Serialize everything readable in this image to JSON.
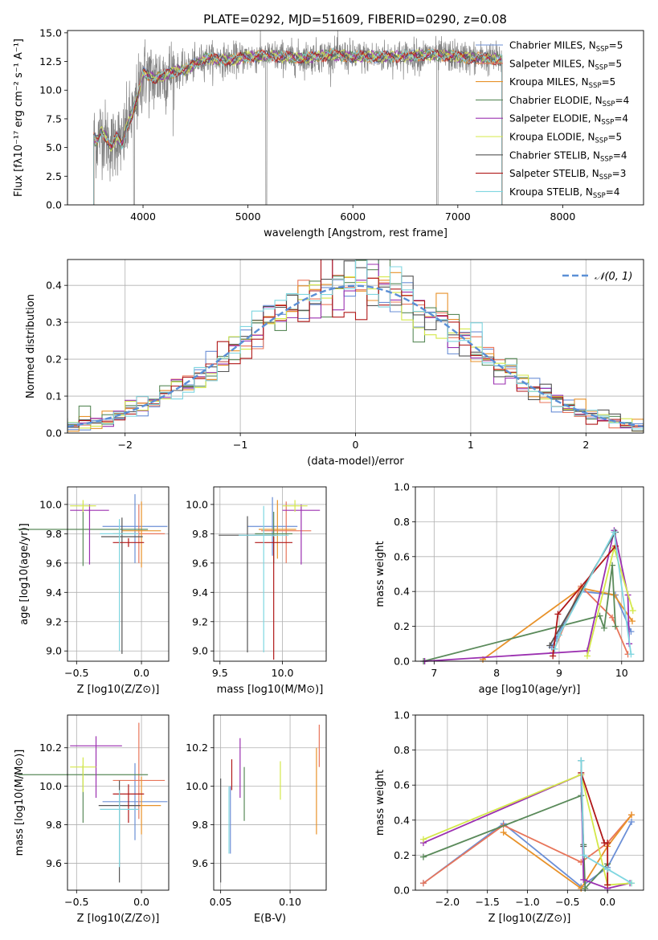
{
  "figure_title": "PLATE=0292, MJD=51609, FIBERID=0290, z=0.08",
  "models": [
    {
      "name": "Chabrier MILES",
      "nssp": "5",
      "color": "#6b8fd6"
    },
    {
      "name": "Salpeter MILES",
      "nssp": "5",
      "color": "#e8755a"
    },
    {
      "name": "Kroupa MILES",
      "nssp": "5",
      "color": "#e8922a"
    },
    {
      "name": "Chabrier ELODIE",
      "nssp": "4",
      "color": "#5a8a5a"
    },
    {
      "name": "Salpeter ELODIE",
      "nssp": "4",
      "color": "#9b30b0"
    },
    {
      "name": "Kroupa ELODIE",
      "nssp": "5",
      "color": "#d4e84a"
    },
    {
      "name": "Chabrier STELIB",
      "nssp": "4",
      "color": "#555555"
    },
    {
      "name": "Salpeter STELIB",
      "nssp": "3",
      "color": "#b01818"
    },
    {
      "name": "Kroupa STELIB",
      "nssp": "4",
      "color": "#7fd6e0"
    }
  ],
  "chart_data": [
    {
      "type": "line",
      "title": "PLATE=0292, MJD=51609, FIBERID=0290, z=0.08",
      "xlabel": "wavelength [Angstrom, rest frame]",
      "ylabel": "Flux [fλ10⁻¹⁷ erg cm⁻² s⁻¹ A⁻¹]",
      "xlim": [
        3280,
        8770
      ],
      "ylim": [
        0,
        15.2
      ],
      "xticks": [
        "4000",
        "5000",
        "6000",
        "7000",
        "8000"
      ],
      "yticks": [
        "0.0",
        "2.5",
        "5.0",
        "7.5",
        "10.0",
        "12.5",
        "15.0"
      ],
      "data_series": {
        "name": "data",
        "color": "#808080"
      },
      "spectrum_knots": {
        "x": [
          3520,
          3560,
          3600,
          3650,
          3700,
          3750,
          3800,
          3850,
          3900,
          3950,
          4000,
          4100,
          4200,
          4300,
          4400,
          4500,
          4600,
          4800,
          5000,
          5200,
          5500,
          5800,
          6000,
          6300,
          6600,
          6800,
          7000,
          7200,
          7420
        ],
        "y": [
          6.0,
          5.5,
          6.5,
          5.8,
          5.0,
          6.0,
          5.2,
          7.0,
          8.0,
          9.5,
          11.5,
          11.0,
          11.3,
          11.6,
          11.8,
          12.3,
          12.8,
          12.6,
          12.9,
          13.0,
          12.8,
          13.1,
          12.9,
          12.9,
          13.0,
          13.1,
          12.9,
          12.8,
          12.7
        ]
      },
      "legend_position": "upper right"
    },
    {
      "type": "histogram",
      "xlabel": "(data-model)/error",
      "ylabel": "Normed distribution",
      "xlim": [
        -2.5,
        2.5
      ],
      "ylim": [
        0,
        0.47
      ],
      "grid": true,
      "xticks": [
        "−2",
        "−1",
        "0",
        "1",
        "2"
      ],
      "yticks": [
        "0.0",
        "0.1",
        "0.2",
        "0.3",
        "0.4"
      ],
      "reference_curve": {
        "label": "𝒩(0, 1)",
        "mean": 0,
        "sigma": 1,
        "color": "#5b8fd6"
      },
      "bin_width": 0.1,
      "legend_position": "upper right"
    },
    {
      "type": "scatter",
      "panel": "age-vs-Z",
      "xlabel": "Z [log10(Z/Z⊙)]",
      "ylabel": "age  [log10(age/yr)]",
      "xlim": [
        -0.57,
        0.21
      ],
      "ylim": [
        8.93,
        10.12
      ],
      "xticks": [
        "−0.5",
        "0.0"
      ],
      "yticks": [
        "9.0",
        "9.2",
        "9.4",
        "9.6",
        "9.8",
        "10.0"
      ],
      "points": [
        {
          "x": -0.05,
          "y": 9.85,
          "xerr": 0.25,
          "yerr_lo": 0.25,
          "yerr_hi": 0.22
        },
        {
          "x": -0.02,
          "y": 9.8,
          "xerr": 0.2,
          "yerr_lo": 0.2,
          "yerr_hi": 0.2
        },
        {
          "x": 0.0,
          "y": 9.82,
          "xerr": 0.15,
          "yerr_lo": 0.25,
          "yerr_hi": 0.2
        },
        {
          "x": -0.45,
          "y": 9.83,
          "xerr": 0.5,
          "yerr_lo": 0.25,
          "yerr_hi": 0.15
        },
        {
          "x": -0.4,
          "y": 9.96,
          "xerr": 0.15,
          "yerr_lo": 0.37,
          "yerr_hi": 0.04
        },
        {
          "x": -0.45,
          "y": 9.99,
          "xerr": 0.1,
          "yerr_lo": 0.04,
          "yerr_hi": 0.04
        },
        {
          "x": -0.15,
          "y": 9.78,
          "xerr": 0.16,
          "yerr_lo": 0.8,
          "yerr_hi": 0.13
        },
        {
          "x": -0.1,
          "y": 9.74,
          "xerr": 0.12,
          "yerr_lo": 0.03,
          "yerr_hi": 0.03
        },
        {
          "x": -0.17,
          "y": 9.8,
          "xerr": 0.15,
          "yerr_lo": 0.8,
          "yerr_hi": 0.1
        }
      ]
    },
    {
      "type": "scatter",
      "panel": "age-vs-mass",
      "xlabel": "mass [log10(M/M⊙)]",
      "xlim": [
        9.45,
        10.35
      ],
      "ylim": [
        8.93,
        10.12
      ],
      "xticks": [
        "9.5",
        "10.0"
      ],
      "yticks": [
        "9.0",
        "9.2",
        "9.4",
        "9.6",
        "9.8",
        "10.0"
      ],
      "points": [
        {
          "x": 9.92,
          "y": 9.85,
          "xerr": 0.2,
          "yerr_lo": 0.2,
          "yerr_hi": 0.2
        },
        {
          "x": 10.03,
          "y": 9.82,
          "xerr": 0.2,
          "yerr_lo": 0.22,
          "yerr_hi": 0.2
        },
        {
          "x": 9.96,
          "y": 9.83,
          "xerr": 0.15,
          "yerr_lo": 0.2,
          "yerr_hi": 0.2
        },
        {
          "x": 9.93,
          "y": 9.8,
          "xerr": 0.15,
          "yerr_lo": 0.2,
          "yerr_hi": 0.15
        },
        {
          "x": 10.15,
          "y": 9.96,
          "xerr": 0.15,
          "yerr_lo": 0.37,
          "yerr_hi": 0.04
        },
        {
          "x": 10.1,
          "y": 9.99,
          "xerr": 0.1,
          "yerr_lo": 0.04,
          "yerr_hi": 0.04
        },
        {
          "x": 9.72,
          "y": 9.79,
          "xerr": 0.23,
          "yerr_lo": 0.8,
          "yerr_hi": 0.13
        },
        {
          "x": 9.93,
          "y": 9.74,
          "xerr": 0.15,
          "yerr_lo": 0.8,
          "yerr_hi": 0.04
        },
        {
          "x": 9.85,
          "y": 9.79,
          "xerr": 0.2,
          "yerr_lo": 0.8,
          "yerr_hi": 0.2
        }
      ]
    },
    {
      "type": "line",
      "panel": "mass-weight-vs-age",
      "xlabel": "age  [log10(age/yr)]",
      "ylabel": "mass weight",
      "xlim": [
        6.7,
        10.35
      ],
      "ylim": [
        0,
        1.0
      ],
      "grid": true,
      "xticks": [
        "7",
        "8",
        "9",
        "10"
      ],
      "yticks": [
        "0.0",
        "0.2",
        "0.4",
        "0.6",
        "0.8",
        "1.0"
      ],
      "series": [
        {
          "x": [
            8.88,
            8.95,
            9.35,
            9.9,
            10.15
          ],
          "y": [
            0.08,
            0.13,
            0.4,
            0.38,
            0.17
          ]
        },
        {
          "x": [
            8.9,
            9.35,
            9.85,
            10.1
          ],
          "y": [
            0.05,
            0.43,
            0.25,
            0.04
          ]
        },
        {
          "x": [
            7.78,
            9.35,
            9.88,
            10.17
          ],
          "y": [
            0.01,
            0.42,
            0.38,
            0.23
          ]
        },
        {
          "x": [
            6.83,
            9.65,
            9.72,
            9.85,
            9.9
          ],
          "y": [
            0.0,
            0.26,
            0.19,
            0.55,
            0.2
          ]
        },
        {
          "x": [
            6.85,
            9.45,
            9.88,
            10.1,
            10.12
          ],
          "y": [
            0.0,
            0.06,
            0.75,
            0.38,
            0.1
          ]
        },
        {
          "x": [
            9.45,
            9.88,
            10.18
          ],
          "y": [
            0.03,
            0.65,
            0.29
          ]
        },
        {
          "x": [
            8.85,
            9.9
          ],
          "y": [
            0.09,
            0.74
          ]
        },
        {
          "x": [
            8.9,
            8.98,
            9.9
          ],
          "y": [
            0.03,
            0.27,
            0.66
          ]
        },
        {
          "x": [
            8.93,
            9.0,
            9.88,
            10.15
          ],
          "y": [
            0.07,
            0.15,
            0.74,
            0.04
          ]
        }
      ]
    },
    {
      "type": "scatter",
      "panel": "mass-vs-Z",
      "xlabel": "Z [log10(Z/Z⊙)]",
      "ylabel": "mass [log10(M/M⊙)]",
      "xlim": [
        -0.57,
        0.21
      ],
      "ylim": [
        9.46,
        10.37
      ],
      "xticks": [
        "−0.5",
        "0.0"
      ],
      "yticks": [
        "9.6",
        "9.8",
        "10.0",
        "10.2"
      ],
      "points": [
        {
          "x": -0.05,
          "y": 9.92,
          "xerr": 0.25,
          "yerr_lo": 0.2,
          "yerr_hi": 0.2
        },
        {
          "x": -0.02,
          "y": 10.03,
          "xerr": 0.2,
          "yerr_lo": 0.2,
          "yerr_hi": 0.3
        },
        {
          "x": 0.0,
          "y": 9.9,
          "xerr": 0.15,
          "yerr_lo": 0.15,
          "yerr_hi": 0.15
        },
        {
          "x": -0.45,
          "y": 10.06,
          "xerr": 0.5,
          "yerr_lo": 0.25,
          "yerr_hi": 0.05
        },
        {
          "x": -0.35,
          "y": 10.21,
          "xerr": 0.2,
          "yerr_lo": 0.27,
          "yerr_hi": 0.05
        },
        {
          "x": -0.45,
          "y": 10.1,
          "xerr": 0.1,
          "yerr_lo": 0.13,
          "yerr_hi": 0.05
        },
        {
          "x": -0.17,
          "y": 9.9,
          "xerr": 0.16,
          "yerr_lo": 0.4,
          "yerr_hi": 0.13
        },
        {
          "x": -0.1,
          "y": 9.96,
          "xerr": 0.12,
          "yerr_lo": 0.15,
          "yerr_hi": 0.05
        },
        {
          "x": -0.17,
          "y": 9.88,
          "xerr": 0.15,
          "yerr_lo": 0.3,
          "yerr_hi": 0.1
        }
      ]
    },
    {
      "type": "scatter",
      "panel": "mass-vs-EBV",
      "xlabel": "E(B-V)",
      "xlim": [
        0.045,
        0.126
      ],
      "ylim": [
        9.46,
        10.37
      ],
      "xticks": [
        "0.05",
        "0.10"
      ],
      "yticks": [
        "9.6",
        "9.8",
        "10.0",
        "10.2"
      ],
      "points": [
        {
          "x": 0.057,
          "y": 9.8,
          "yerr_lo": 0.15,
          "yerr_hi": 0.2
        },
        {
          "x": 0.121,
          "y": 10.2,
          "yerr_lo": 0.1,
          "yerr_hi": 0.12
        },
        {
          "x": 0.119,
          "y": 9.97,
          "yerr_lo": 0.22,
          "yerr_hi": 0.23
        },
        {
          "x": 0.067,
          "y": 10.0,
          "yerr_lo": 0.18,
          "yerr_hi": 0.1
        },
        {
          "x": 0.064,
          "y": 10.11,
          "yerr_lo": 0.17,
          "yerr_hi": 0.14
        },
        {
          "x": 0.093,
          "y": 10.03,
          "yerr_lo": 0.1,
          "yerr_hi": 0.1
        },
        {
          "x": 0.05,
          "y": 9.75,
          "yerr_lo": 0.25,
          "yerr_hi": 0.29
        },
        {
          "x": 0.058,
          "y": 10.04,
          "yerr_lo": 0.06,
          "yerr_hi": 0.1
        },
        {
          "x": 0.056,
          "y": 9.85,
          "yerr_lo": 0.2,
          "yerr_hi": 0.15
        }
      ]
    },
    {
      "type": "line",
      "panel": "mass-weight-vs-Z",
      "xlabel": "Z [log10(Z/Z⊙)]",
      "ylabel": "mass weight",
      "xlim": [
        -2.4,
        0.45
      ],
      "ylim": [
        0,
        1.0
      ],
      "grid": true,
      "xticks": [
        "−2.0",
        "−1.5",
        "−1.0",
        "−0.5",
        "0.0"
      ],
      "yticks": [
        "0.0",
        "0.2",
        "0.4",
        "0.6",
        "0.8",
        "1.0"
      ],
      "series": [
        {
          "x": [
            -2.3,
            -1.3,
            -0.33,
            0.0,
            0.3
          ],
          "y": [
            0.04,
            0.38,
            0.02,
            0.13,
            0.39
          ]
        },
        {
          "x": [
            -2.3,
            -1.3,
            -0.33,
            0.0,
            0.3
          ],
          "y": [
            0.04,
            0.37,
            0.16,
            0.27,
            0.43
          ]
        },
        {
          "x": [
            -1.3,
            -0.33,
            0.0,
            0.3
          ],
          "y": [
            0.33,
            0.01,
            0.25,
            0.43
          ]
        },
        {
          "x": [
            -2.3,
            -0.33,
            -0.3,
            -0.28,
            0.0
          ],
          "y": [
            0.19,
            0.54,
            0.26,
            0.01,
            0.15
          ]
        },
        {
          "x": [
            -2.3,
            -0.33,
            -0.3,
            0.0,
            0.28
          ],
          "y": [
            0.27,
            0.66,
            0.06,
            0.01,
            0.04
          ]
        },
        {
          "x": [
            -2.3,
            -0.33,
            0.0,
            0.3
          ],
          "y": [
            0.29,
            0.66,
            0.03,
            0.04
          ]
        },
        {
          "x": [
            -0.33,
            -0.3
          ],
          "y": [
            0.74,
            0.25
          ]
        },
        {
          "x": [
            -0.33,
            -0.04,
            0.0,
            0.0
          ],
          "y": [
            0.67,
            0.27,
            0.27,
            0.03
          ]
        },
        {
          "x": [
            -0.33,
            -0.3,
            0.0,
            0.3
          ],
          "y": [
            0.74,
            0.2,
            0.12,
            0.04
          ]
        }
      ]
    }
  ]
}
